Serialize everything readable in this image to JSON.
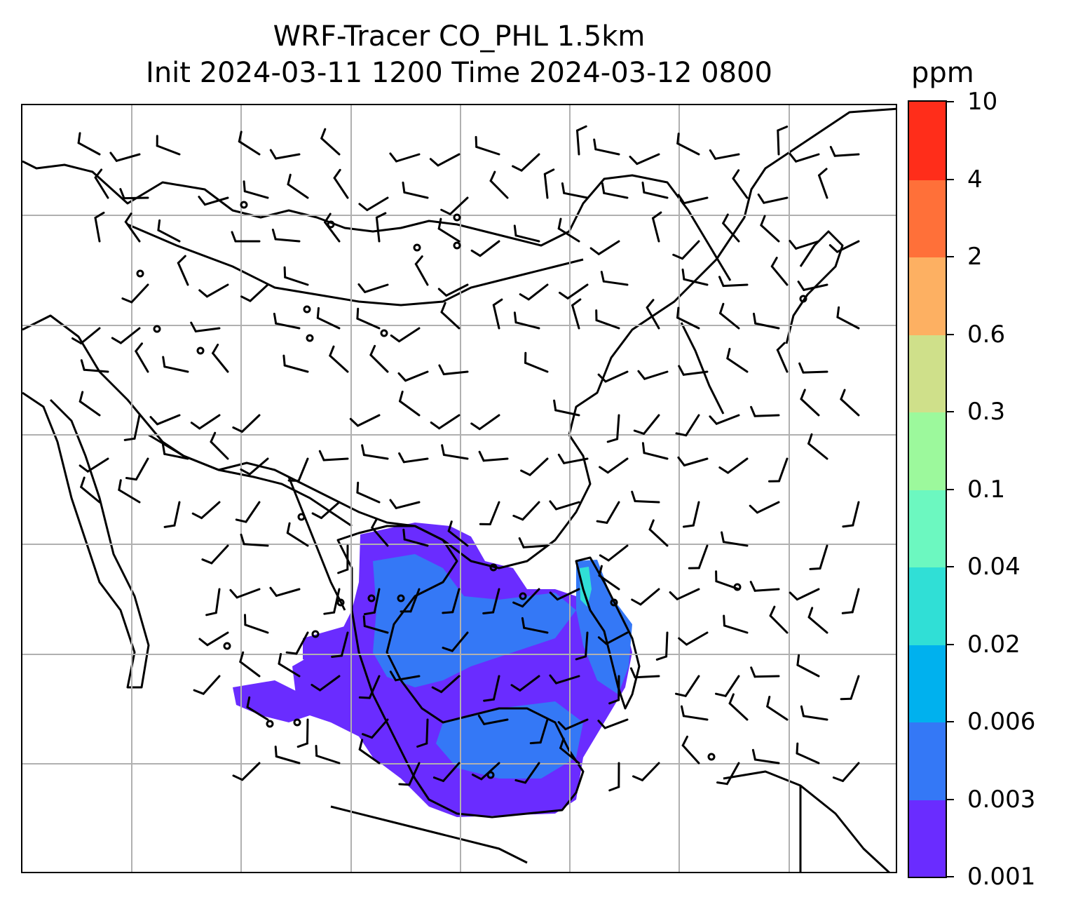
{
  "title": {
    "line1": "WRF-Tracer CO_PHL 1.5km",
    "line2": "Init 2024-03-11 1200 Time 2024-03-12 0800"
  },
  "colorbar": {
    "unit": "ppm",
    "levels": [
      "0.001",
      "0.003",
      "0.006",
      "0.02",
      "0.04",
      "0.1",
      "0.3",
      "0.6",
      "2",
      "4",
      "10"
    ],
    "colors": [
      "#6a2cff",
      "#3478f6",
      "#00b1ee",
      "#30dfd6",
      "#6cf8c0",
      "#9cf99c",
      "#cfe08a",
      "#fdb062",
      "#ff7039",
      "#ff2d1a"
    ]
  },
  "map": {
    "gridlines": "on",
    "features": [
      "coastlines",
      "country-borders",
      "wind-barbs",
      "station-circles",
      "tracer-concentration-fill"
    ]
  }
}
